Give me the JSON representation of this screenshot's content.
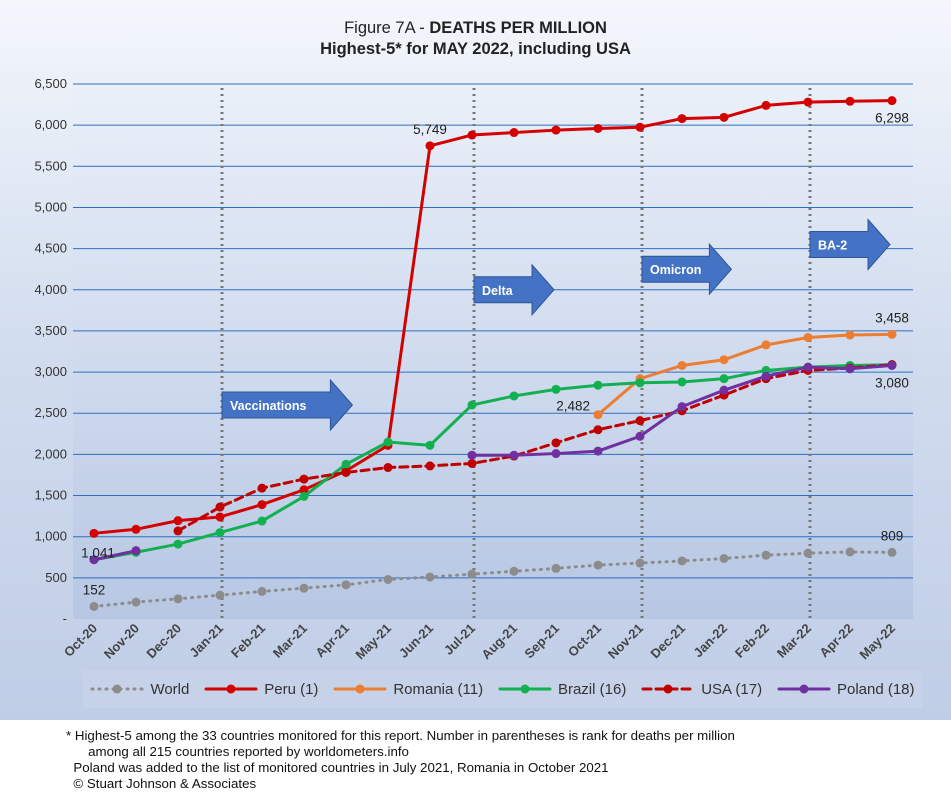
{
  "title_line1_prefix": "Figure 7A - ",
  "title_line1_bold": "DEATHS PER MILLION",
  "title_line2": "Highest-5* for MAY 2022, including USA",
  "chart_data": {
    "type": "line",
    "ylim": [
      0,
      6500
    ],
    "y_ticks": [
      "-",
      "500",
      "1,000",
      "1,500",
      "2,000",
      "2,500",
      "3,000",
      "3,500",
      "4,000",
      "4,500",
      "5,000",
      "5,500",
      "6,000",
      "6,500"
    ],
    "grid": true,
    "legend_position": "bottom",
    "categories": [
      "Oct-20",
      "Nov-20",
      "Dec-20",
      "Jan-21",
      "Feb-21",
      "Mar-21",
      "Apr-21",
      "May-21",
      "Jun-21",
      "Jul-21",
      "Aug-21",
      "Sep-21",
      "Oct-21",
      "Nov-21",
      "Dec-21",
      "Jan-22",
      "Feb-22",
      "Mar-22",
      "Apr-22",
      "May-22"
    ],
    "series": [
      {
        "name": "World",
        "color": "#8c8c8c",
        "dash": "dot",
        "values": [
          152,
          205,
          245,
          290,
          335,
          375,
          415,
          480,
          510,
          545,
          580,
          615,
          655,
          680,
          705,
          735,
          775,
          800,
          815,
          809
        ]
      },
      {
        "name": "Peru (1)",
        "color": "#d40000",
        "dash": "solid",
        "values": [
          1041,
          1090,
          1195,
          1240,
          1390,
          1570,
          1800,
          2110,
          5749,
          5880,
          5910,
          5940,
          5960,
          5975,
          6080,
          6095,
          6240,
          6280,
          6290,
          6298
        ]
      },
      {
        "name": "Romania (11)",
        "color": "#ed7d31",
        "dash": "solid",
        "values": [
          null,
          null,
          null,
          null,
          null,
          null,
          null,
          null,
          null,
          null,
          null,
          null,
          2482,
          2920,
          3080,
          3150,
          3330,
          3420,
          3450,
          3458
        ]
      },
      {
        "name": "Brazil (16)",
        "color": "#11b050",
        "dash": "solid",
        "values": [
          720,
          810,
          910,
          1050,
          1190,
          1490,
          1880,
          2150,
          2110,
          2600,
          2710,
          2790,
          2840,
          2870,
          2880,
          2920,
          3020,
          3060,
          3080,
          3090
        ]
      },
      {
        "name": "USA (17)",
        "color": "#c00000",
        "dash": "dash",
        "values": [
          null,
          null,
          1070,
          1360,
          1590,
          1700,
          1780,
          1840,
          1860,
          1890,
          1980,
          2140,
          2300,
          2410,
          2530,
          2720,
          2920,
          3020,
          3050,
          3090
        ]
      },
      {
        "name": "Poland (18)",
        "color": "#7030a0",
        "dash": "solid",
        "values": [
          720,
          830,
          null,
          null,
          null,
          null,
          null,
          null,
          null,
          1990,
          1990,
          2010,
          2040,
          2220,
          2580,
          2780,
          2950,
          3060,
          3040,
          3080
        ]
      }
    ],
    "data_labels": [
      {
        "text": "5,749",
        "cat": "Jun-21",
        "value": 5749,
        "pos": "above"
      },
      {
        "text": "6,298",
        "cat": "May-22",
        "value": 6298,
        "pos": "below"
      },
      {
        "text": "3,458",
        "cat": "May-22",
        "value": 3458,
        "pos": "above"
      },
      {
        "text": "3,080",
        "cat": "May-22",
        "value": 3080,
        "pos": "below"
      },
      {
        "text": "2,482",
        "cat": "Oct-21",
        "value": 2482,
        "pos": "left"
      },
      {
        "text": "1,041",
        "cat": "Oct-20",
        "value": 1041,
        "pos": "below"
      },
      {
        "text": "152",
        "cat": "Oct-20",
        "value": 152,
        "pos": "above"
      },
      {
        "text": "809",
        "cat": "May-22",
        "value": 809,
        "pos": "above"
      }
    ],
    "vertical_markers": [
      "Jan-21",
      "Jul-21",
      "Nov-21",
      "Mar-22"
    ],
    "annotations": [
      {
        "text": "Vaccinations",
        "at": "Jan-21",
        "value": 2600
      },
      {
        "text": "Delta",
        "at": "Jul-21",
        "value": 4000
      },
      {
        "text": "Omicron",
        "at": "Nov-21",
        "value": 4250
      },
      {
        "text": "BA-2",
        "at": "Mar-22",
        "value": 4550
      }
    ]
  },
  "footnotes": [
    "* Highest-5 among the 33 countries monitored for this report. Number in parentheses is rank for deaths per million",
    "      among all 215 countries reported by worldometers.info",
    "  Poland was added to the list of monitored countries in July 2021, Romania in October 2021",
    "  © Stuart Johnson & Associates"
  ]
}
